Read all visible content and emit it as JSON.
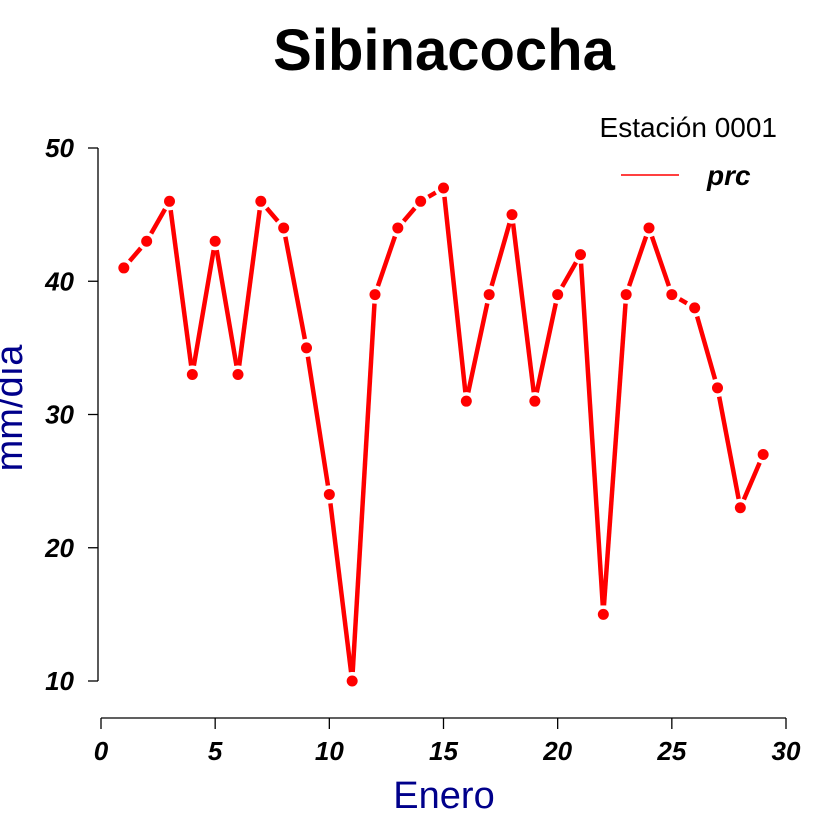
{
  "colors": {
    "series": "#ff0000",
    "axis_title": "#00008b",
    "axis": "#000000"
  },
  "chart_data": {
    "type": "line",
    "title": "Sibinacocha",
    "xlabel": "Enero",
    "ylabel": "mm/día",
    "xlim": [
      0,
      30
    ],
    "ylim": [
      10,
      50
    ],
    "xticks": [
      "0",
      "5",
      "10",
      "15",
      "20",
      "25",
      "30"
    ],
    "yticks": [
      "10",
      "20",
      "30",
      "40",
      "50"
    ],
    "grid": false,
    "legend": {
      "title": "Estación 0001",
      "placement": "top-right",
      "entries": [
        "prc"
      ]
    },
    "series": [
      {
        "name": "prc",
        "x": [
          1,
          2,
          3,
          4,
          5,
          6,
          7,
          8,
          9,
          10,
          11,
          12,
          13,
          14,
          15,
          16,
          17,
          18,
          19,
          20,
          21,
          22,
          23,
          24,
          25,
          26,
          27,
          28,
          29
        ],
        "values": [
          41,
          43,
          46,
          33,
          43,
          33,
          46,
          44,
          35,
          24,
          10,
          39,
          44,
          46,
          47,
          31,
          39,
          45,
          31,
          39,
          42,
          15,
          39,
          44,
          39,
          38,
          32,
          23,
          27
        ]
      }
    ]
  }
}
